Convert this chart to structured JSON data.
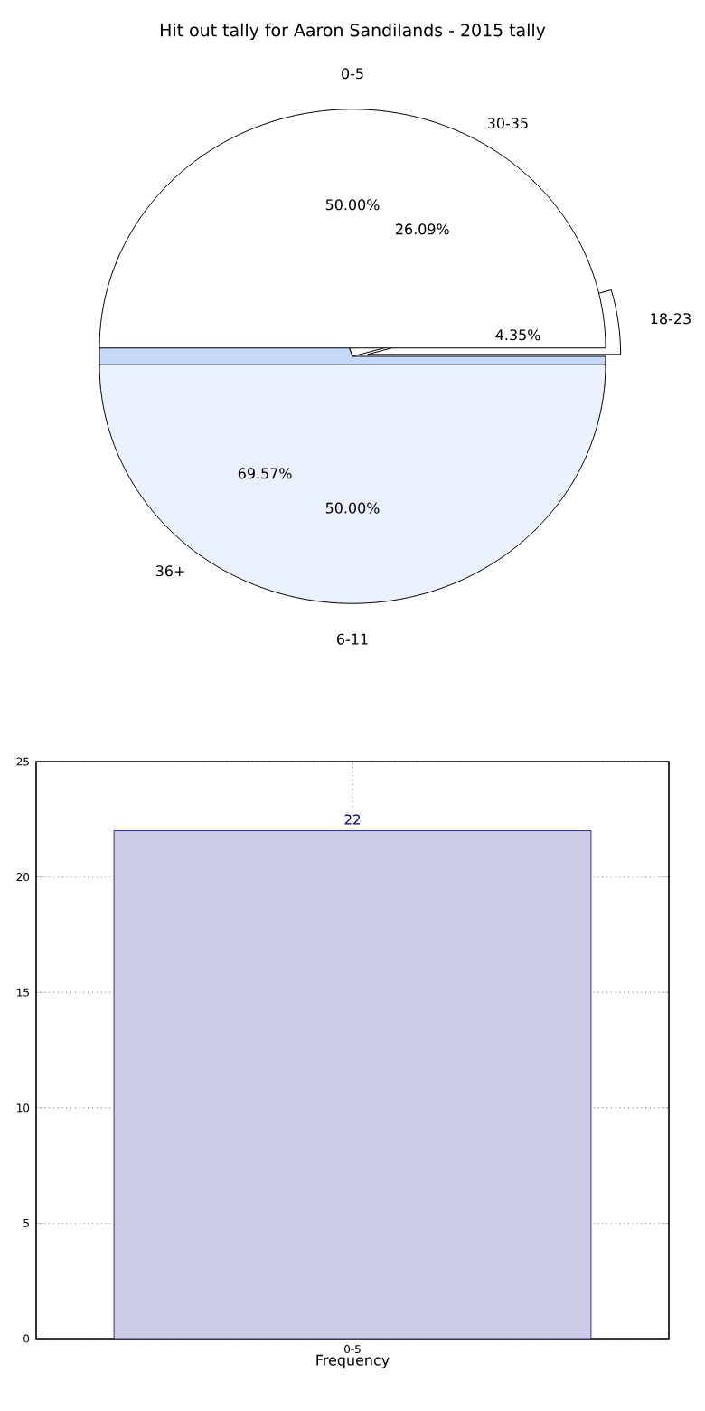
{
  "chart_data": [
    {
      "type": "pie",
      "title": "Hit out tally for Aaron Sandilands - 2015 tally",
      "categories": [
        "0-5",
        "6-11"
      ],
      "values": [
        50,
        50
      ],
      "colors": [
        "#ffffff",
        "#eaf0fd"
      ],
      "value_labels": [
        "50.00%",
        "50.00%"
      ]
    },
    {
      "type": "pie",
      "categories": [
        "18-23",
        "30-35",
        "36+"
      ],
      "values": [
        4.35,
        26.09,
        69.57
      ],
      "colors": [
        "#ffffff",
        "#ffffff",
        "#c5d8f8"
      ],
      "value_labels": [
        "4.35%",
        "26.09%",
        "69.57%"
      ]
    },
    {
      "type": "bar",
      "categories": [
        "0-5"
      ],
      "values": [
        22
      ],
      "color": "#ccccE5",
      "xlabel": "Frequency",
      "ylim": [
        0,
        25
      ],
      "yticks": [
        0,
        5,
        10,
        15,
        20,
        25
      ],
      "grid": true,
      "data_labels": true
    }
  ]
}
